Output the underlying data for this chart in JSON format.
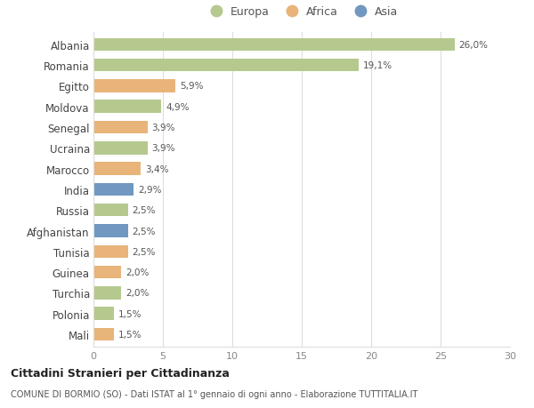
{
  "countries": [
    "Albania",
    "Romania",
    "Egitto",
    "Moldova",
    "Senegal",
    "Ucraina",
    "Marocco",
    "India",
    "Russia",
    "Afghanistan",
    "Tunisia",
    "Guinea",
    "Turchia",
    "Polonia",
    "Mali"
  ],
  "values": [
    26.0,
    19.1,
    5.9,
    4.9,
    3.9,
    3.9,
    3.4,
    2.9,
    2.5,
    2.5,
    2.5,
    2.0,
    2.0,
    1.5,
    1.5
  ],
  "labels": [
    "26,0%",
    "19,1%",
    "5,9%",
    "4,9%",
    "3,9%",
    "3,9%",
    "3,4%",
    "2,9%",
    "2,5%",
    "2,5%",
    "2,5%",
    "2,0%",
    "2,0%",
    "1,5%",
    "1,5%"
  ],
  "continents": [
    "Europa",
    "Europa",
    "Africa",
    "Europa",
    "Africa",
    "Europa",
    "Africa",
    "Asia",
    "Europa",
    "Asia",
    "Africa",
    "Africa",
    "Europa",
    "Europa",
    "Africa"
  ],
  "colors": {
    "Europa": "#b5c98e",
    "Africa": "#e8b47a",
    "Asia": "#7098c0"
  },
  "xlim": [
    0,
    30
  ],
  "xticks": [
    0,
    5,
    10,
    15,
    20,
    25,
    30
  ],
  "title": "Cittadini Stranieri per Cittadinanza",
  "subtitle": "COMUNE DI BORMIO (SO) - Dati ISTAT al 1° gennaio di ogni anno - Elaborazione TUTTITALIA.IT",
  "background_color": "#ffffff",
  "grid_color": "#dddddd"
}
